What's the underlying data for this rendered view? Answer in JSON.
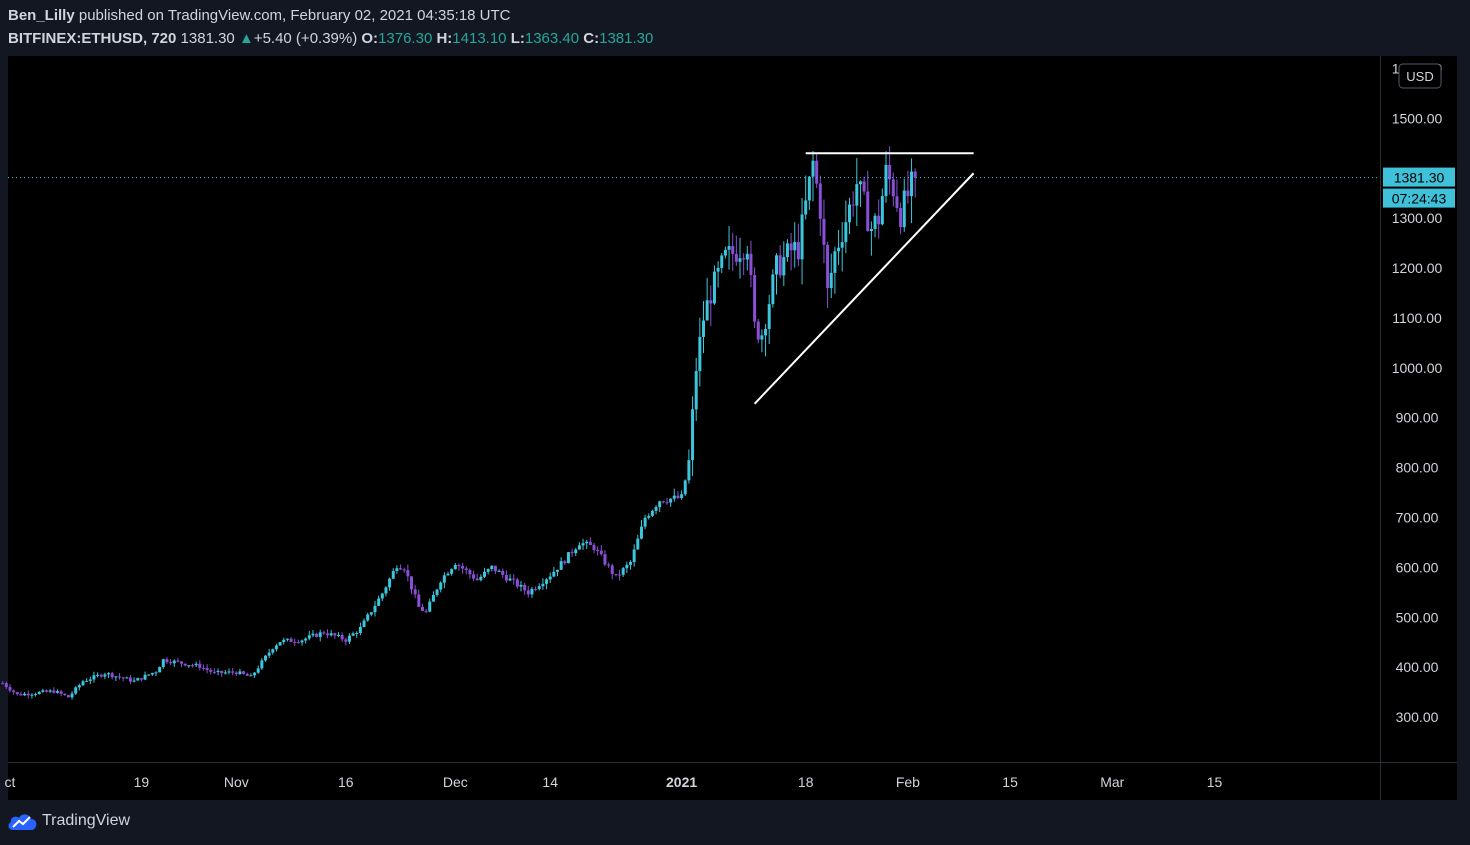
{
  "header": {
    "author": "Ben_Lilly",
    "published_text": "published on TradingView.com, February 02, 2021 04:35:18 UTC"
  },
  "legend": {
    "symbol": "BITFINEX:ETHUSD, 720",
    "last": "1381.30",
    "change": "+5.40 (+0.39%)",
    "open_label": "O:",
    "open": "1376.30",
    "high_label": "H:",
    "high": "1413.10",
    "low_label": "L:",
    "low": "1363.40",
    "close_label": "C:",
    "close": "1381.30"
  },
  "price_axis": {
    "currency": "USD",
    "last_price_label": "1381.30",
    "countdown": "07:24:43"
  },
  "logo": {
    "text": "TradingView"
  },
  "colors": {
    "up": "#3cc6dc",
    "down": "#8a4fd6",
    "trendline": "#ffffff",
    "price_tag": "#3fc1d9",
    "background": "#000000",
    "panel": "#131722"
  },
  "chart_data": {
    "type": "candlestick",
    "ylim": [
      210,
      1625
    ],
    "y_ticks": [
      300,
      400,
      500,
      600,
      700,
      800,
      900,
      1000,
      1100,
      1200,
      1300,
      1500,
      1600
    ],
    "x_ticks": [
      "ct",
      "19",
      "Nov",
      "16",
      "Dec",
      "14",
      "2021",
      "18",
      "Feb",
      "15",
      "Mar",
      "15"
    ],
    "x_tick_dates": [
      "2020-10-01",
      "2020-10-19",
      "2020-11-01",
      "2020-11-16",
      "2020-12-01",
      "2020-12-14",
      "2021-01-01",
      "2021-01-18",
      "2021-02-01",
      "2021-02-15",
      "2021-03-01",
      "2021-03-15"
    ],
    "candle_interval": "720",
    "anchor_points": [
      [
        "2020-09-30",
        368
      ],
      [
        "2020-10-02",
        345
      ],
      [
        "2020-10-07",
        352
      ],
      [
        "2020-10-09",
        340
      ],
      [
        "2020-10-11",
        372
      ],
      [
        "2020-10-14",
        388
      ],
      [
        "2020-10-18",
        372
      ],
      [
        "2020-10-21",
        392
      ],
      [
        "2020-10-22",
        415
      ],
      [
        "2020-10-25",
        407
      ],
      [
        "2020-10-27",
        402
      ],
      [
        "2020-10-29",
        388
      ],
      [
        "2020-11-01",
        390
      ],
      [
        "2020-11-03",
        380
      ],
      [
        "2020-11-06",
        440
      ],
      [
        "2020-11-07",
        452
      ],
      [
        "2020-11-10",
        455
      ],
      [
        "2020-11-13",
        470
      ],
      [
        "2020-11-16",
        455
      ],
      [
        "2020-11-18",
        478
      ],
      [
        "2020-11-21",
        548
      ],
      [
        "2020-11-23",
        605
      ],
      [
        "2020-11-24",
        600
      ],
      [
        "2020-11-26",
        520
      ],
      [
        "2020-11-27",
        510
      ],
      [
        "2020-11-29",
        575
      ],
      [
        "2020-12-01",
        610
      ],
      [
        "2020-12-04",
        575
      ],
      [
        "2020-12-06",
        600
      ],
      [
        "2020-12-09",
        570
      ],
      [
        "2020-12-11",
        550
      ],
      [
        "2020-12-14",
        585
      ],
      [
        "2020-12-16",
        615
      ],
      [
        "2020-12-18",
        650
      ],
      [
        "2020-12-20",
        640
      ],
      [
        "2020-12-23",
        580
      ],
      [
        "2020-12-25",
        610
      ],
      [
        "2020-12-27",
        700
      ],
      [
        "2020-12-29",
        735
      ],
      [
        "2021-01-01",
        740
      ],
      [
        "2021-01-02",
        810
      ],
      [
        "2021-01-03",
        1000
      ],
      [
        "2021-01-04",
        1100
      ],
      [
        "2021-01-05",
        1150
      ],
      [
        "2021-01-07",
        1220
      ],
      [
        "2021-01-10",
        1250
      ],
      [
        "2021-01-11",
        1080
      ],
      [
        "2021-01-12",
        1070
      ],
      [
        "2021-01-14",
        1200
      ],
      [
        "2021-01-16",
        1235
      ],
      [
        "2021-01-17",
        1240
      ],
      [
        "2021-01-19",
        1410
      ],
      [
        "2021-01-20",
        1320
      ],
      [
        "2021-01-21",
        1150
      ],
      [
        "2021-01-22",
        1230
      ],
      [
        "2021-01-24",
        1320
      ],
      [
        "2021-01-25",
        1370
      ],
      [
        "2021-01-27",
        1280
      ],
      [
        "2021-01-28",
        1300
      ],
      [
        "2021-01-29",
        1390
      ],
      [
        "2021-01-30",
        1360
      ],
      [
        "2021-01-31",
        1310
      ],
      [
        "2021-02-02",
        1381.3
      ]
    ],
    "annotations": [
      {
        "type": "trendline",
        "name": "resistance",
        "points": [
          [
            "2021-01-18",
            1430
          ],
          [
            "2021-02-10",
            1430
          ]
        ]
      },
      {
        "type": "trendline",
        "name": "support",
        "points": [
          [
            "2021-01-11",
            928
          ],
          [
            "2021-02-10",
            1390
          ]
        ]
      }
    ]
  }
}
